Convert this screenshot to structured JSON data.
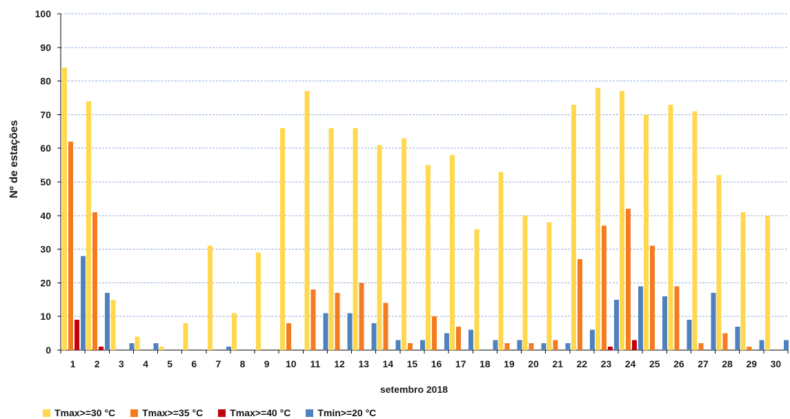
{
  "chart_data": {
    "type": "bar",
    "title": "",
    "xlabel": "setembro 2018",
    "ylabel": "Nº de estações",
    "ylim": [
      0,
      100
    ],
    "yticks": [
      "0",
      "10",
      "20",
      "30",
      "40",
      "50",
      "60",
      "70",
      "80",
      "90",
      "100"
    ],
    "grid": true,
    "legend_position": "bottom-left",
    "categories": [
      "1",
      "2",
      "3",
      "4",
      "5",
      "6",
      "7",
      "8",
      "9",
      "10",
      "11",
      "12",
      "13",
      "14",
      "15",
      "16",
      "17",
      "18",
      "19",
      "20",
      "21",
      "22",
      "23",
      "24",
      "25",
      "26",
      "27",
      "28",
      "29",
      "30"
    ],
    "series": [
      {
        "name": "Tmax>=30 °C",
        "color": "#FFD84D",
        "values": [
          84,
          74,
          15,
          4,
          1,
          8,
          31,
          11,
          29,
          66,
          77,
          66,
          66,
          61,
          63,
          55,
          58,
          36,
          53,
          40,
          38,
          73,
          78,
          77,
          70,
          73,
          71,
          52,
          41,
          40
        ]
      },
      {
        "name": "Tmax>=35 °C",
        "color": "#F47B20",
        "values": [
          62,
          41,
          0,
          0,
          0,
          0,
          0,
          0,
          0,
          8,
          18,
          17,
          20,
          14,
          2,
          10,
          7,
          0,
          2,
          2,
          3,
          27,
          37,
          42,
          31,
          19,
          2,
          5,
          1,
          0
        ]
      },
      {
        "name": "Tmax>=40 °C",
        "color": "#C0000B",
        "values": [
          9,
          1,
          0,
          0,
          0,
          0,
          0,
          0,
          0,
          0,
          0,
          0,
          0,
          0,
          0,
          0,
          0,
          0,
          0,
          0,
          0,
          0,
          1,
          3,
          0,
          0,
          0,
          0,
          0,
          0
        ]
      },
      {
        "name": "Tmin>=20 °C",
        "color": "#4F81BD",
        "values": [
          28,
          17,
          2,
          2,
          0,
          0,
          1,
          0,
          0,
          0,
          11,
          11,
          8,
          3,
          3,
          5,
          6,
          3,
          3,
          2,
          2,
          6,
          15,
          19,
          16,
          9,
          17,
          7,
          3,
          3
        ]
      }
    ]
  }
}
